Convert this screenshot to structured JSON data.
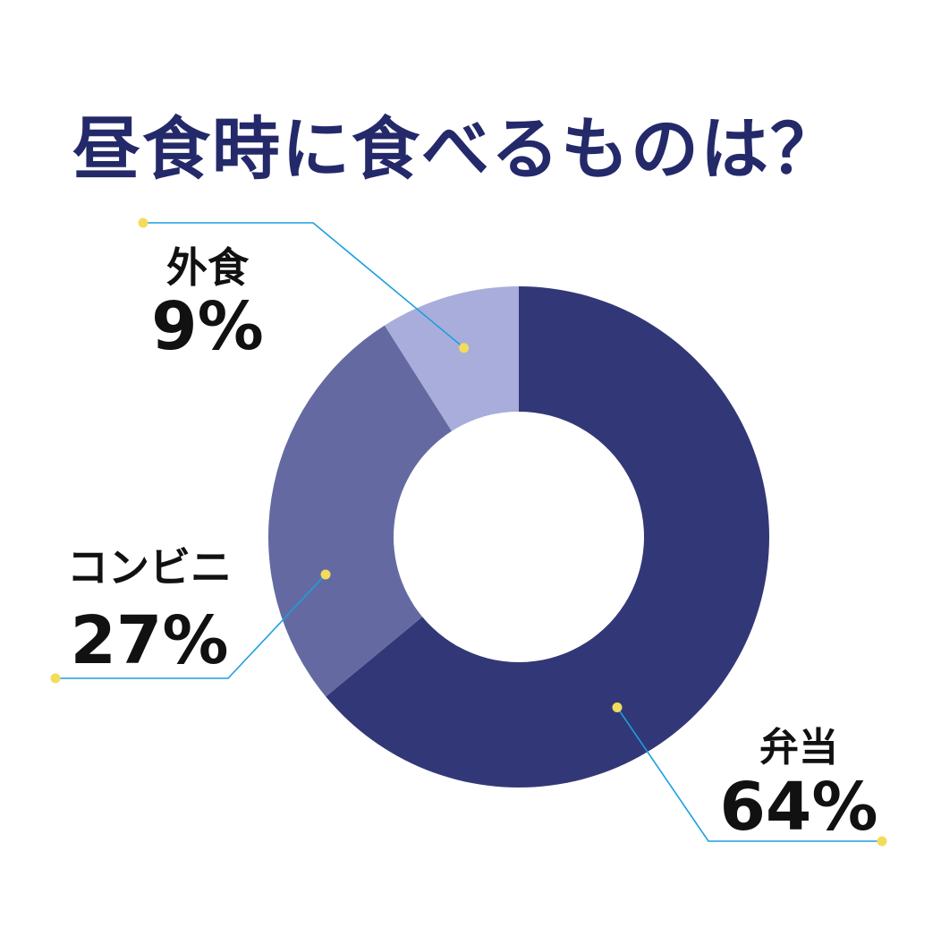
{
  "chart_data": {
    "type": "pie",
    "variant": "donut",
    "title": "昼食時に食べるものは？",
    "slices": [
      {
        "label": "弁当",
        "value": 64,
        "display": "64%",
        "color": "#323877"
      },
      {
        "label": "コンビニ",
        "value": 27,
        "display": "27%",
        "color": "#646aa1"
      },
      {
        "label": "外食",
        "value": 9,
        "display": "9%",
        "color": "#a9addb"
      }
    ],
    "title_color": "#24296a",
    "leader_line_color": "#1a9fe0",
    "dot_color": "#f3dc5b"
  }
}
